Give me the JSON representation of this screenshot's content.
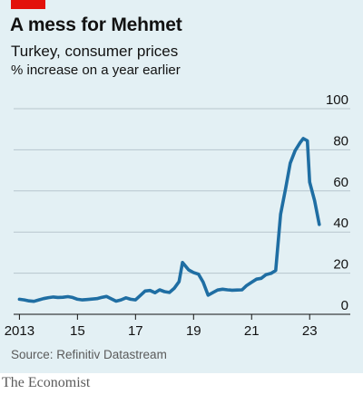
{
  "header": {
    "title": "A mess for Mehmet",
    "subtitle": "Turkey, consumer prices",
    "units": "% increase on a year earlier"
  },
  "colors": {
    "background": "#e3f0f4",
    "line": "#1f6ea3",
    "accent": "#e3120b",
    "gridline": "#b7c6cd",
    "text": "#121212"
  },
  "source": "Source: Refinitiv Datastream",
  "footer": "The Economist",
  "chart_data": {
    "type": "line",
    "title": "A mess for Mehmet",
    "subtitle": "Turkey, consumer prices",
    "ylabel": "% increase on a year earlier",
    "xlim": [
      2012.8,
      2024.4
    ],
    "ylim": [
      0,
      100
    ],
    "yticks": [
      0,
      20,
      40,
      60,
      80,
      100
    ],
    "xticks": [
      {
        "value": 2013,
        "label": "2013"
      },
      {
        "value": 2015,
        "label": "15"
      },
      {
        "value": 2017,
        "label": "17"
      },
      {
        "value": 2019,
        "label": "19"
      },
      {
        "value": 2021,
        "label": "21"
      },
      {
        "value": 2023,
        "label": "23"
      }
    ],
    "grid": true,
    "y_axis_side": "right",
    "series": [
      {
        "points": [
          [
            2013.0,
            7.3
          ],
          [
            2013.17,
            7.0
          ],
          [
            2013.33,
            6.5
          ],
          [
            2013.5,
            6.3
          ],
          [
            2013.67,
            7.0
          ],
          [
            2013.83,
            7.6
          ],
          [
            2014.0,
            8.1
          ],
          [
            2014.17,
            8.4
          ],
          [
            2014.33,
            8.2
          ],
          [
            2014.5,
            8.3
          ],
          [
            2014.67,
            8.6
          ],
          [
            2014.83,
            8.2
          ],
          [
            2015.0,
            7.3
          ],
          [
            2015.17,
            7.0
          ],
          [
            2015.33,
            7.2
          ],
          [
            2015.5,
            7.4
          ],
          [
            2015.67,
            7.6
          ],
          [
            2015.83,
            8.2
          ],
          [
            2016.0,
            8.7
          ],
          [
            2016.17,
            7.5
          ],
          [
            2016.33,
            6.4
          ],
          [
            2016.5,
            7.0
          ],
          [
            2016.67,
            8.0
          ],
          [
            2016.83,
            7.3
          ],
          [
            2017.0,
            7.0
          ],
          [
            2017.17,
            9.2
          ],
          [
            2017.33,
            11.3
          ],
          [
            2017.5,
            11.6
          ],
          [
            2017.67,
            10.5
          ],
          [
            2017.83,
            11.9
          ],
          [
            2018.0,
            11.0
          ],
          [
            2018.17,
            10.6
          ],
          [
            2018.33,
            12.6
          ],
          [
            2018.5,
            15.9
          ],
          [
            2018.62,
            25.2
          ],
          [
            2018.83,
            21.6
          ],
          [
            2019.0,
            20.3
          ],
          [
            2019.17,
            19.5
          ],
          [
            2019.33,
            15.7
          ],
          [
            2019.5,
            9.3
          ],
          [
            2019.67,
            10.6
          ],
          [
            2019.83,
            11.8
          ],
          [
            2020.0,
            12.2
          ],
          [
            2020.17,
            11.9
          ],
          [
            2020.33,
            11.7
          ],
          [
            2020.5,
            11.8
          ],
          [
            2020.67,
            11.9
          ],
          [
            2020.83,
            14.0
          ],
          [
            2021.0,
            15.6
          ],
          [
            2021.17,
            17.1
          ],
          [
            2021.33,
            17.5
          ],
          [
            2021.5,
            19.3
          ],
          [
            2021.67,
            19.9
          ],
          [
            2021.83,
            21.3
          ],
          [
            2022.0,
            48.7
          ],
          [
            2022.17,
            61.1
          ],
          [
            2022.33,
            73.5
          ],
          [
            2022.5,
            79.6
          ],
          [
            2022.67,
            83.5
          ],
          [
            2022.78,
            85.5
          ],
          [
            2022.92,
            84.4
          ],
          [
            2023.0,
            64.3
          ],
          [
            2023.17,
            55.2
          ],
          [
            2023.33,
            43.7
          ]
        ]
      }
    ]
  }
}
